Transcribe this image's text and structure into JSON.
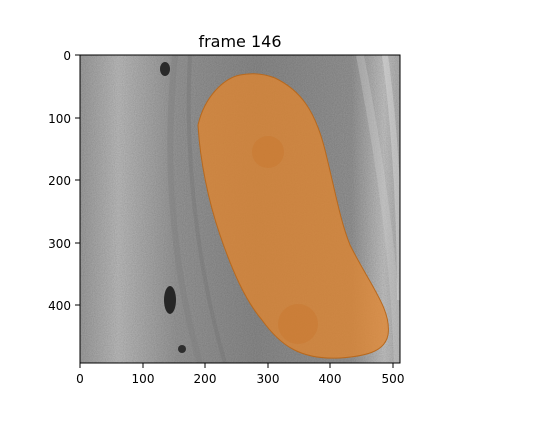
{
  "figure": {
    "title": "frame 146",
    "x_tick_labels": [
      "0",
      "100",
      "200",
      "300",
      "400",
      "500"
    ],
    "y_tick_labels": [
      "0",
      "100",
      "200",
      "300",
      "400"
    ]
  },
  "colors": {
    "mask": "#e0852f",
    "background_gray": "#9a9a9a"
  }
}
